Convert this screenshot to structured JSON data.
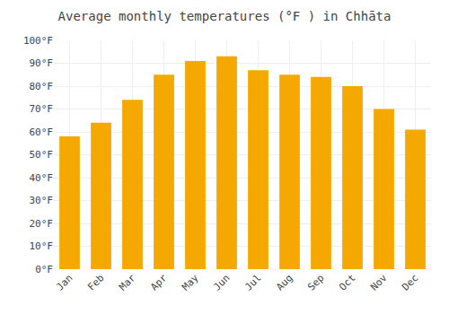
{
  "chart_data": {
    "type": "bar",
    "title": "Average monthly temperatures (°F ) in Chhāta",
    "categories": [
      "Jan",
      "Feb",
      "Mar",
      "Apr",
      "May",
      "Jun",
      "Jul",
      "Aug",
      "Sep",
      "Oct",
      "Nov",
      "Dec"
    ],
    "values": [
      58,
      64,
      74,
      85,
      91,
      93,
      87,
      85,
      84,
      80,
      70,
      61
    ],
    "color": "#F5A800",
    "ylim": [
      0,
      100
    ],
    "yticks": [
      {
        "value": 0,
        "label": "0°F"
      },
      {
        "value": 10,
        "label": "10°F"
      },
      {
        "value": 20,
        "label": "20°F"
      },
      {
        "value": 30,
        "label": "30°F"
      },
      {
        "value": 40,
        "label": "40°F"
      },
      {
        "value": 50,
        "label": "50°F"
      },
      {
        "value": 60,
        "label": "60°F"
      },
      {
        "value": 70,
        "label": "70°F"
      },
      {
        "value": 80,
        "label": "80°F"
      },
      {
        "value": 90,
        "label": "90°F"
      },
      {
        "value": 100,
        "label": "100°F"
      }
    ],
    "grid": true
  }
}
